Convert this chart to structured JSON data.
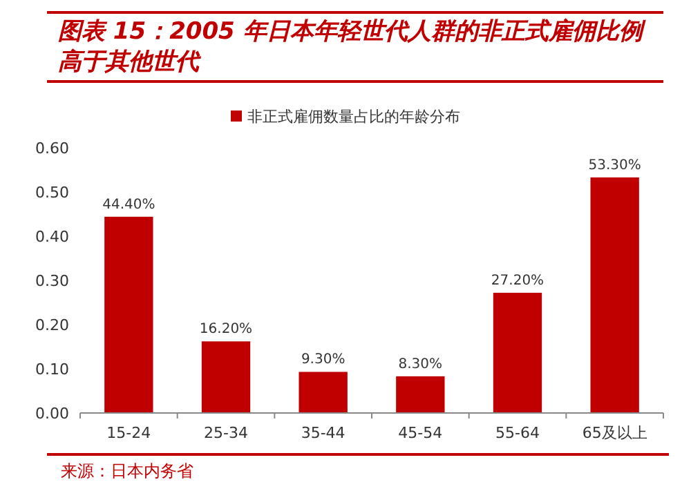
{
  "chart_data": {
    "type": "bar",
    "title": "图表 15：2005 年日本年轻世代人群的非正式雇佣比例高于其他世代",
    "categories": [
      "15-24",
      "25-34",
      "35-44",
      "45-54",
      "55-64",
      "65及以上"
    ],
    "series": [
      {
        "name": "非正式雇佣数量占比的年龄分布",
        "color": "#c00000",
        "values": [
          0.444,
          0.162,
          0.093,
          0.083,
          0.272,
          0.533
        ],
        "value_labels": [
          "44.40%",
          "16.20%",
          "9.30%",
          "8.30%",
          "27.20%",
          "53.30%"
        ]
      }
    ],
    "ylim": [
      0,
      0.6
    ],
    "yticks": [
      {
        "value": 0,
        "label": "0.00"
      },
      {
        "value": 0.1,
        "label": "0.10"
      },
      {
        "value": 0.2,
        "label": "0.20"
      },
      {
        "value": 0.3,
        "label": "0.30"
      },
      {
        "value": 0.4,
        "label": "0.40"
      },
      {
        "value": 0.5,
        "label": "0.50"
      },
      {
        "value": 0.6,
        "label": "0.60"
      }
    ],
    "legend": "top",
    "annotations": [
      "来源：日本内务省"
    ]
  }
}
